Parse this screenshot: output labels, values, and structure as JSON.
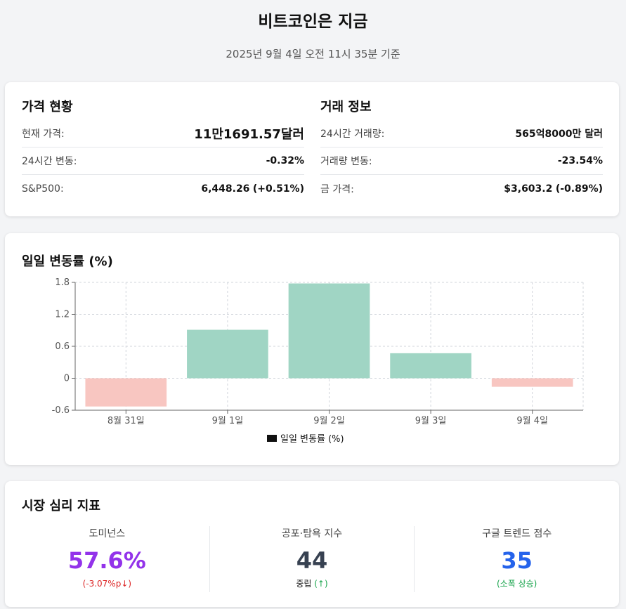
{
  "header": {
    "title": "비트코인은 지금",
    "subtitle": "2025년 9월 4일 오전 11시 35분 기준"
  },
  "price_status": {
    "title": "가격 현황",
    "current_price_label": "현재 가격:",
    "current_price_value": "11만1691.57달러",
    "change_24h_label": "24시간 변동:",
    "change_24h_value": "-0.32%",
    "sp500_label": "S&P500:",
    "sp500_value": "6,448.26",
    "sp500_change": "(+0.51%)"
  },
  "trade_info": {
    "title": "거래 정보",
    "volume_label": "24시간 거래량:",
    "volume_value": "565억8000만 달러",
    "volume_change_label": "거래량 변동:",
    "volume_change_value": "-23.54%",
    "gold_label": "금 가격:",
    "gold_value": "$3,603.2",
    "gold_change": "(-0.89%)"
  },
  "colors": {
    "positive_bar": "#a0d5c4",
    "negative_bar": "#f8c6c1",
    "negative_text": "#dc2626",
    "positive_text": "#16a34a",
    "dominance": "#9333ea",
    "fear_greed": "#374151",
    "google_trends": "#2563eb"
  },
  "chart_data": {
    "type": "bar",
    "title": "일일 변동률 (%)",
    "categories": [
      "8월 31일",
      "9월 1일",
      "9월 2일",
      "9월 3일",
      "9월 4일"
    ],
    "series": [
      {
        "name": "일일 변동률 (%)",
        "values": [
          -0.53,
          0.91,
          1.78,
          0.47,
          -0.16
        ]
      }
    ],
    "ylim": [
      -0.6,
      1.8
    ],
    "yticks": [
      "-0.6",
      "0",
      "0.6",
      "1.2",
      "1.8"
    ],
    "grid": true,
    "legend": "bottom"
  },
  "sentiment": {
    "title": "시장 심리 지표",
    "dominance_label": "도미넌스",
    "dominance_value": "57.6%",
    "dominance_sub": "(-3.07%p↓)",
    "fear_greed_label": "공포·탐욕 지수",
    "fear_greed_value": "44",
    "fear_greed_state": "중립",
    "fear_greed_arrow": "(↑)",
    "trends_label": "구글 트렌드 점수",
    "trends_value": "35",
    "trends_sub": "(소폭 상승)"
  }
}
